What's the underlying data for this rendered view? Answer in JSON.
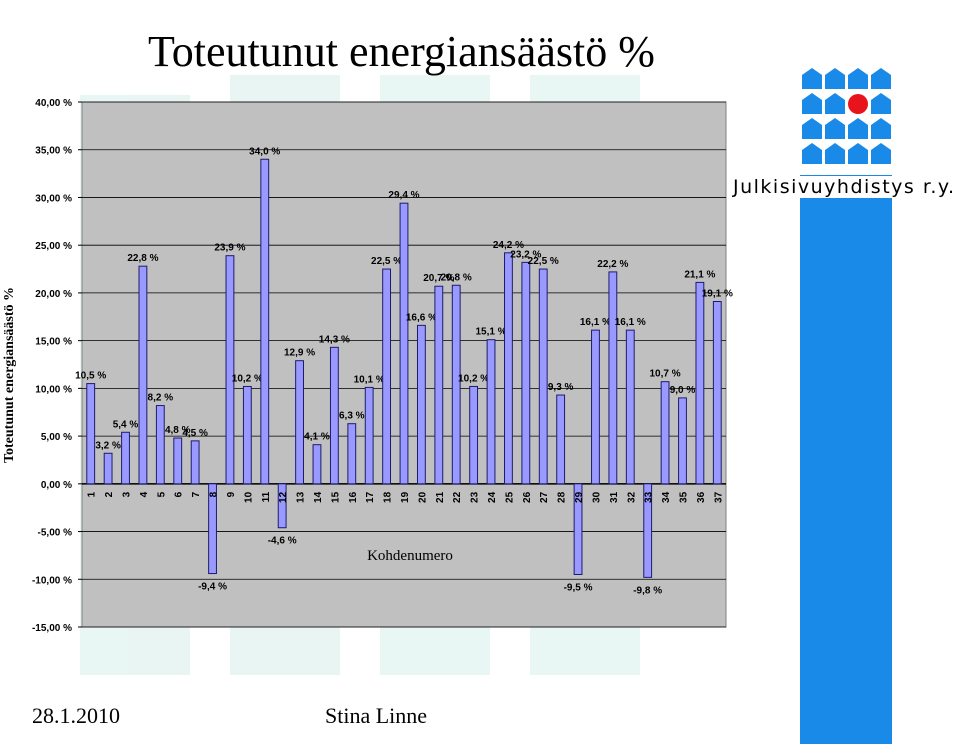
{
  "slide": {
    "title": "Toteutunut energiansäästö %",
    "organization": "Julkisivuyhdistys r.y.",
    "date": "28.1.2010",
    "author": "Stina Linne"
  },
  "colors": {
    "bar_fill": "#9999ff",
    "bar_stroke": "#1c1c6e",
    "plot_background": "#c0c0c0",
    "brand_blue": "#1a8ae8",
    "logo_red": "#e8141c"
  },
  "chart_data": {
    "type": "bar",
    "xlabel": "Kohdenumero",
    "ylabel": "Toteutunut energiansäästö %",
    "ylim": [
      -15,
      40
    ],
    "yticks": [
      40,
      35,
      30,
      25,
      20,
      15,
      10,
      5,
      0,
      -5,
      -10,
      -15
    ],
    "ytick_labels": [
      "40,00 %",
      "35,00 %",
      "30,00 %",
      "25,00 %",
      "20,00 %",
      "15,00 %",
      "10,00 %",
      "5,00 %",
      "0,00 %",
      "-5,00 %",
      "-10,00 %",
      "-15,00 %"
    ],
    "grid": true,
    "legend": false,
    "categories": [
      "1",
      "2",
      "3",
      "4",
      "5",
      "6",
      "7",
      "8",
      "9",
      "10",
      "11",
      "12",
      "13",
      "14",
      "15",
      "16",
      "17",
      "18",
      "19",
      "20",
      "21",
      "22",
      "23",
      "24",
      "25",
      "26",
      "27",
      "28",
      "29",
      "30",
      "31",
      "32",
      "33",
      "34",
      "35",
      "36",
      "37"
    ],
    "values": [
      10.5,
      3.2,
      5.4,
      22.8,
      8.2,
      4.8,
      4.5,
      -9.4,
      23.9,
      10.2,
      34.0,
      -4.6,
      12.9,
      4.1,
      14.3,
      6.3,
      10.1,
      22.5,
      29.4,
      16.6,
      20.7,
      20.8,
      10.2,
      15.1,
      24.2,
      23.2,
      22.5,
      9.3,
      -9.5,
      16.1,
      22.2,
      16.1,
      -9.8,
      10.7,
      9.0,
      21.1,
      19.1
    ],
    "data_labels": [
      "10,5 %",
      "3,2 %",
      "5,4 %",
      "22,8 %",
      "8,2 %",
      "4,8 %",
      "4,5 %",
      "-9,4 %",
      "23,9 %",
      "10,2 %",
      "34,0 %",
      "-4,6 %",
      "12,9 %",
      "4,1 %",
      "14,3 %",
      "6,3 %",
      "10,1 %",
      "22,5 %",
      "29,4 %",
      "16,6 %",
      "20,7 %",
      "20,8 %",
      "10,2 %",
      "15,1 %",
      "24,2 %",
      "23,2 %",
      "22,5 %",
      "9,3 %",
      "-9,5 %",
      "16,1 %",
      "22,2 %",
      "16,1 %",
      "-9,8 %",
      "10,7 %",
      "9,0 %",
      "21,1 %",
      "19,1 %"
    ]
  }
}
